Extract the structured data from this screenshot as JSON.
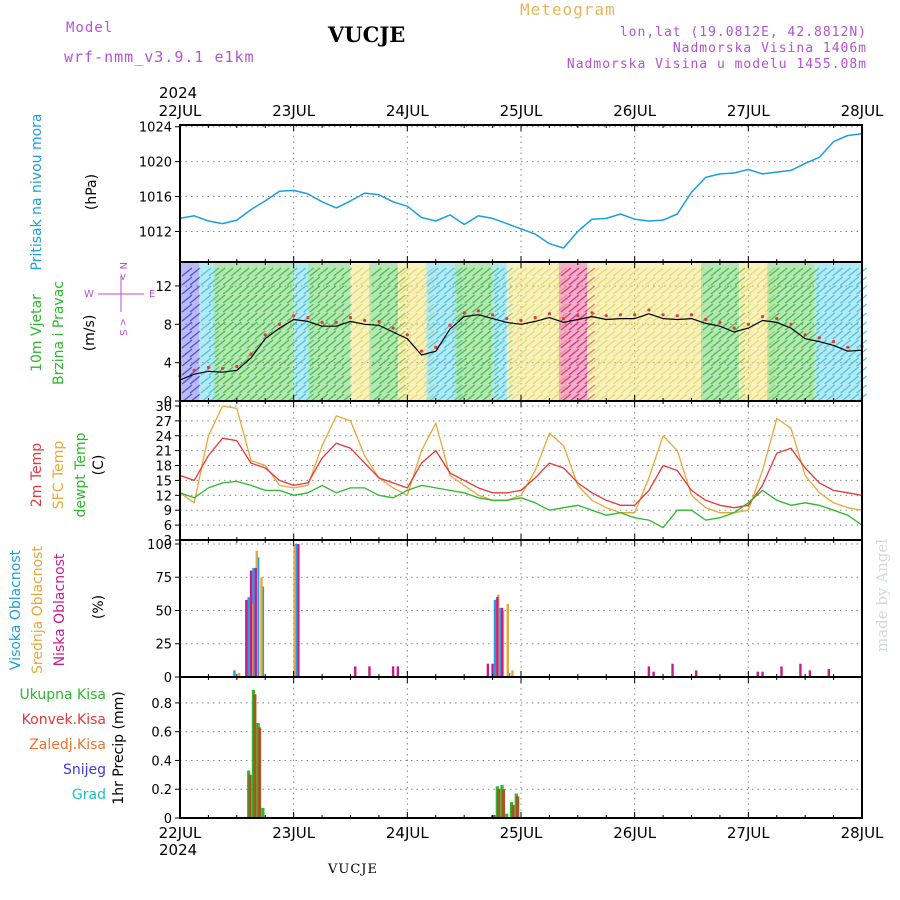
{
  "header": {
    "model_label": "Model",
    "model_name": "wrf-nmm_v3.9.1 e1km",
    "station": "VUCJE",
    "meteogram": "Meteogram",
    "lonlat": "lon,lat (19.0812E, 42.8812N)",
    "elevation": "Nadmorska Visina 1406m",
    "model_elevation": "Nadmorska Visina u modelu 1455.08m"
  },
  "footer": {
    "station": "VUCJE",
    "credit": "made by Angel"
  },
  "time_axis": {
    "year": "2024",
    "labels": [
      "22JUL",
      "23JUL",
      "24JUL",
      "25JUL",
      "26JUL",
      "27JUL",
      "28JUL"
    ]
  },
  "colors": {
    "pressure": "#1aa0e0",
    "temp_2m": "#e8383a",
    "temp_sfc": "#e8a838",
    "dewpoint": "#2db82d",
    "cloud_high": "#1aa0e0",
    "cloud_mid": "#e8a838",
    "cloud_low": "#c81b8c",
    "precip_total": "#2db82d",
    "precip_conv": "#e8383a",
    "precip_frozen": "#f07030",
    "snow": "#3a3ae0",
    "graupel": "#20c0c0",
    "wind_label": "#b452d6"
  },
  "chart_data": [
    {
      "type": "line",
      "panel": "pressure",
      "ylabel_parts": [
        "Pritisak na nivou mora",
        "(hPa)"
      ],
      "ylim": [
        1008.5,
        1024.2
      ],
      "yticks": [
        1012,
        1016,
        1020,
        1024
      ],
      "grid": true,
      "series": [
        {
          "key": "pressure",
          "x": [
            0,
            3,
            6,
            9,
            12,
            15,
            18,
            21,
            24,
            27,
            30,
            33,
            36,
            39,
            42,
            45,
            48,
            51,
            54,
            57,
            60,
            63,
            66,
            69,
            72,
            75,
            78,
            81,
            84,
            87,
            90,
            93,
            96,
            99,
            102,
            105,
            108,
            111,
            114,
            117,
            120,
            123,
            126,
            129,
            132,
            135,
            138,
            141,
            144
          ],
          "values": [
            1013.5,
            1013.8,
            1013.2,
            1012.9,
            1013.3,
            1014.5,
            1015.5,
            1016.6,
            1016.7,
            1016.3,
            1015.4,
            1014.7,
            1015.5,
            1016.4,
            1016.2,
            1015.4,
            1014.9,
            1013.6,
            1013.2,
            1013.9,
            1012.8,
            1013.8,
            1013.5,
            1012.9,
            1012.3,
            1011.7,
            1010.6,
            1010.1,
            1012.0,
            1013.4,
            1013.5,
            1014.0,
            1013.4,
            1013.2,
            1013.3,
            1014.0,
            1016.5,
            1018.2,
            1018.6,
            1018.7,
            1019.1,
            1018.6,
            1018.8,
            1019.0,
            1019.8,
            1020.5,
            1022.3,
            1023.0,
            1023.2
          ]
        }
      ]
    },
    {
      "type": "line",
      "panel": "wind",
      "ylabel_parts": [
        "10m Vjetar",
        "Brzina i Pravac",
        "(m/s)"
      ],
      "direction_legend": [
        "N",
        "W",
        "E",
        "S"
      ],
      "ylim": [
        0,
        14.5
      ],
      "yticks": [
        0,
        4,
        8,
        12
      ],
      "grid": true,
      "series": [
        {
          "key": "wind_speed",
          "x": [
            0,
            3,
            6,
            9,
            12,
            15,
            18,
            21,
            24,
            27,
            30,
            33,
            36,
            39,
            42,
            45,
            48,
            51,
            54,
            57,
            60,
            63,
            66,
            69,
            72,
            75,
            78,
            81,
            84,
            87,
            90,
            93,
            96,
            99,
            102,
            105,
            108,
            111,
            114,
            117,
            120,
            123,
            126,
            129,
            132,
            135,
            138,
            141,
            144
          ],
          "values": [
            2.2,
            2.8,
            3.1,
            3.0,
            3.2,
            4.5,
            6.5,
            7.6,
            8.5,
            8.3,
            7.8,
            7.8,
            8.3,
            8.0,
            7.9,
            7.2,
            6.5,
            4.8,
            5.2,
            7.5,
            8.8,
            9.0,
            8.6,
            8.2,
            8.0,
            8.3,
            8.7,
            8.2,
            8.5,
            8.8,
            8.5,
            8.6,
            8.6,
            9.1,
            8.6,
            8.5,
            8.6,
            8.1,
            7.8,
            7.2,
            7.6,
            8.4,
            8.2,
            7.6,
            6.5,
            6.2,
            5.8,
            5.2,
            5.3
          ]
        }
      ]
    },
    {
      "type": "line",
      "panel": "temperature",
      "ylabel_parts": [
        "2m Temp",
        "SFC Temp",
        "dewpt Temp",
        "(C)"
      ],
      "ylim": [
        3,
        31
      ],
      "yticks": [
        3,
        6,
        9,
        12,
        15,
        18,
        21,
        24,
        27,
        30
      ],
      "grid": true,
      "series": [
        {
          "key": "temp_sfc",
          "x": [
            0,
            3,
            6,
            9,
            12,
            15,
            18,
            21,
            24,
            27,
            30,
            33,
            36,
            39,
            42,
            45,
            48,
            51,
            54,
            57,
            60,
            63,
            66,
            69,
            72,
            75,
            78,
            81,
            84,
            87,
            90,
            93,
            96,
            99,
            102,
            105,
            108,
            111,
            114,
            117,
            120,
            123,
            126,
            129,
            132,
            135,
            138,
            141,
            144
          ],
          "values": [
            12.5,
            10.5,
            24.0,
            30.0,
            29.5,
            19.0,
            18.0,
            14.0,
            13.5,
            14.0,
            22.0,
            28.0,
            27.0,
            20.0,
            15.5,
            13.5,
            12.0,
            21.0,
            26.5,
            16.0,
            14.0,
            12.0,
            11.0,
            11.0,
            12.0,
            17.0,
            24.5,
            22.0,
            14.0,
            11.0,
            9.5,
            8.5,
            8.5,
            15.5,
            24.0,
            21.0,
            12.0,
            9.5,
            8.5,
            8.5,
            9.0,
            17.0,
            27.5,
            25.5,
            16.0,
            12.5,
            10.5,
            9.5,
            9.0
          ]
        },
        {
          "key": "temp_2m",
          "x": [
            0,
            3,
            6,
            9,
            12,
            15,
            18,
            21,
            24,
            27,
            30,
            33,
            36,
            39,
            42,
            45,
            48,
            51,
            54,
            57,
            60,
            63,
            66,
            69,
            72,
            75,
            78,
            81,
            84,
            87,
            90,
            93,
            96,
            99,
            102,
            105,
            108,
            111,
            114,
            117,
            120,
            123,
            126,
            129,
            132,
            135,
            138,
            141,
            144
          ],
          "values": [
            16.0,
            15.0,
            20.0,
            23.5,
            23.0,
            18.5,
            17.5,
            15.0,
            14.0,
            14.5,
            19.5,
            22.5,
            21.5,
            18.5,
            15.5,
            14.5,
            13.5,
            18.5,
            21.0,
            16.5,
            15.0,
            13.5,
            12.5,
            12.5,
            13.0,
            15.5,
            18.5,
            17.5,
            14.5,
            12.5,
            11.0,
            10.0,
            10.0,
            13.0,
            18.0,
            17.0,
            13.0,
            11.0,
            10.0,
            9.5,
            10.0,
            14.0,
            20.5,
            21.5,
            17.5,
            14.5,
            13.0,
            12.5,
            12.0
          ]
        },
        {
          "key": "dewpoint",
          "x": [
            0,
            3,
            6,
            9,
            12,
            15,
            18,
            21,
            24,
            27,
            30,
            33,
            36,
            39,
            42,
            45,
            48,
            51,
            54,
            57,
            60,
            63,
            66,
            69,
            72,
            75,
            78,
            81,
            84,
            87,
            90,
            93,
            96,
            99,
            102,
            105,
            108,
            111,
            114,
            117,
            120,
            123,
            126,
            129,
            132,
            135,
            138,
            141,
            144
          ],
          "values": [
            12.5,
            11.5,
            13.5,
            14.5,
            14.8,
            14.0,
            13.0,
            13.0,
            12.0,
            12.5,
            14.0,
            12.5,
            13.5,
            13.5,
            12.0,
            11.5,
            13.0,
            14.0,
            13.5,
            13.0,
            12.5,
            11.5,
            11.0,
            11.0,
            11.5,
            10.5,
            9.0,
            9.5,
            10.0,
            9.0,
            8.0,
            8.5,
            7.5,
            7.0,
            5.5,
            9.0,
            9.0,
            7.0,
            7.5,
            8.5,
            10.5,
            13.0,
            11.0,
            10.0,
            10.5,
            10.0,
            9.0,
            8.0,
            6.0
          ]
        }
      ]
    },
    {
      "type": "bar",
      "panel": "clouds",
      "ylabel_parts": [
        "Visoka Oblacnost",
        "Srednja Oblacnost",
        "Niska Oblacnost",
        "(%)"
      ],
      "ylim": [
        0,
        103
      ],
      "yticks": [
        0,
        25,
        50,
        75,
        100
      ],
      "grid": true,
      "series": [
        {
          "key": "cloud_high",
          "x": [
            11.5,
            14.5,
            15.5,
            16.5,
            17.5,
            24.5,
            66.5,
            67.5,
            69.5
          ],
          "values": [
            5,
            60,
            82,
            90,
            68,
            100,
            58,
            52,
            3
          ]
        },
        {
          "key": "cloud_mid",
          "x": [
            12.5,
            15.2,
            16.2,
            17.2,
            24.2,
            67.2,
            68.2,
            69.2,
            70.2
          ],
          "values": [
            3,
            55,
            95,
            75,
            99,
            62,
            50,
            55,
            5
          ]
        },
        {
          "key": "cloud_low",
          "x": [
            14.0,
            15.0,
            16.0,
            25.0,
            37.0,
            40.0,
            45.0,
            46.0,
            65.0,
            66.0,
            67.0,
            68.0,
            99.0,
            100.0,
            104.0,
            109.0,
            122.0,
            123.0,
            127.0,
            131.0,
            133.0,
            137.0
          ],
          "values": [
            58,
            80,
            82,
            100,
            8,
            8,
            8,
            8,
            10,
            10,
            60,
            52,
            8,
            4,
            10,
            5,
            4,
            4,
            8,
            10,
            5,
            6
          ]
        }
      ]
    },
    {
      "type": "bar",
      "panel": "precip",
      "ylabel_parts": [
        "1hr Precip (mm)"
      ],
      "legend": [
        "Ukupna Kisa",
        "Konvek.Kisa",
        "Zaledj.Kisa",
        "Snijeg",
        "Grad"
      ],
      "ylim": [
        0,
        0.98
      ],
      "yticks": [
        0,
        0.2,
        0.4,
        0.6,
        0.8
      ],
      "grid": true,
      "series": [
        {
          "key": "precip_total",
          "x": [
            14.5,
            15.5,
            16.5,
            17.5,
            66.0,
            67.0,
            68.0,
            69.0,
            70.0,
            71.0
          ],
          "values": [
            0.33,
            0.89,
            0.66,
            0.07,
            0.02,
            0.22,
            0.23,
            0.03,
            0.11,
            0.17
          ]
        },
        {
          "key": "precip_conv",
          "x": [
            14.8,
            15.8,
            16.8,
            66.3,
            67.3,
            68.3,
            70.3,
            71.3
          ],
          "values": [
            0.3,
            0.86,
            0.63,
            0.02,
            0.2,
            0.2,
            0.09,
            0.15
          ]
        }
      ]
    }
  ]
}
